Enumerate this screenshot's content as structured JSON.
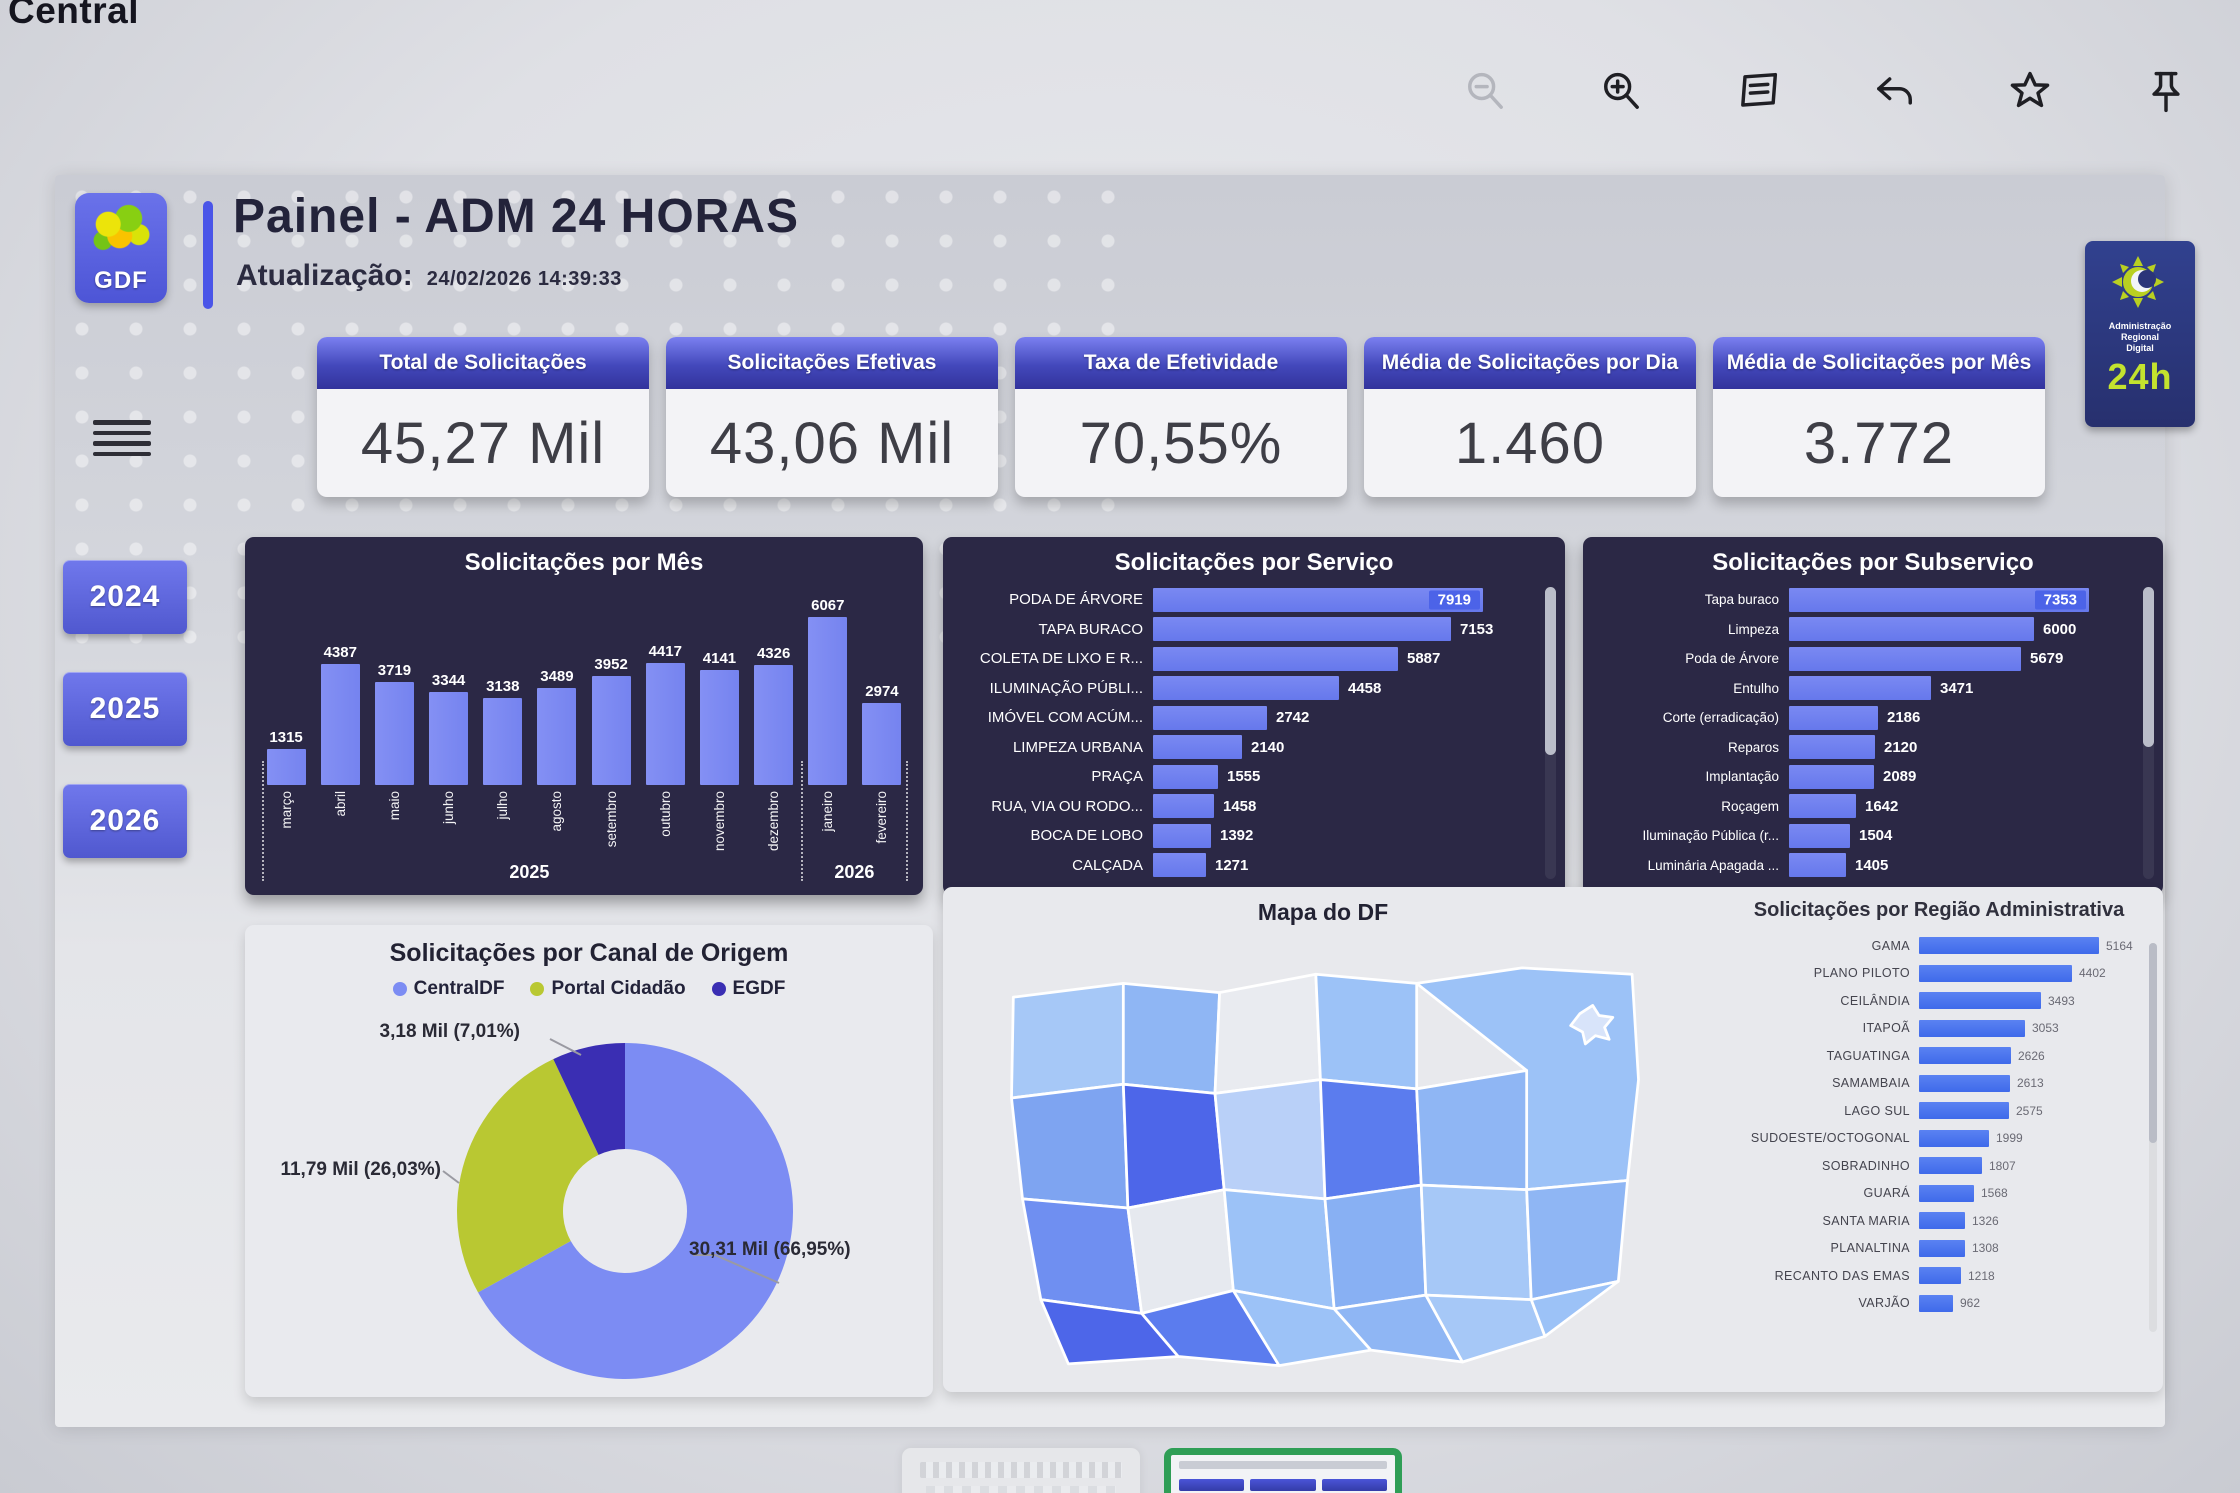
{
  "window": {
    "label": "Central"
  },
  "toolbar": {
    "icons": [
      "zoom-out-icon",
      "zoom-in-icon",
      "comment-icon",
      "undo-icon",
      "star-icon",
      "pin-icon",
      "smiley-icon"
    ]
  },
  "sidebar": {
    "logo_text": "GDF",
    "years": [
      "2024",
      "2025",
      "2026"
    ]
  },
  "header": {
    "title": "Painel - ADM 24 HORAS",
    "update_label": "Atualização:",
    "update_value": "24/02/2026 14:39:33",
    "logo_right": {
      "line1": "Administração",
      "line2": "Regional",
      "line3": "Digital",
      "badge": "24h"
    }
  },
  "kpis": [
    {
      "label": "Total de Solicitações",
      "value": "45,27 Mil"
    },
    {
      "label": "Solicitações Efetivas",
      "value": "43,06 Mil"
    },
    {
      "label": "Taxa de Efetividade",
      "value": "70,55%"
    },
    {
      "label": "Média de Solicitações por Dia",
      "value": "1.460"
    },
    {
      "label": "Média de Solicitações por Mês",
      "value": "3.772"
    }
  ],
  "chart_data": [
    {
      "type": "bar",
      "title": "Solicitações por Mês",
      "categories": [
        "março",
        "abril",
        "maio",
        "junho",
        "julho",
        "agosto",
        "setembro",
        "outubro",
        "novembro",
        "dezembro",
        "janeiro",
        "fevereiro"
      ],
      "values": [
        1315,
        4387,
        3719,
        3344,
        3138,
        3489,
        3952,
        4417,
        4141,
        4326,
        6067,
        2974
      ],
      "group_labels": [
        {
          "label": "2025",
          "months": 10
        },
        {
          "label": "2026",
          "months": 2
        }
      ],
      "ylim": [
        0,
        6500
      ],
      "bar_color": "#7d8bf2"
    },
    {
      "type": "bar",
      "orientation": "horizontal",
      "title": "Solicitações por Serviço",
      "categories": [
        "PODA DE ÁRVORE",
        "TAPA BURACO",
        "COLETA DE LIXO E R...",
        "ILUMINAÇÃO PÚBLI...",
        "IMÓVEL COM ACÚM...",
        "LIMPEZA URBANA",
        "PRAÇA",
        "RUA, VIA OU RODO...",
        "BOCA DE LOBO",
        "CALÇADA"
      ],
      "values": [
        7919,
        7153,
        5887,
        4458,
        2742,
        2140,
        1555,
        1458,
        1392,
        1271
      ],
      "first_value_inside": true,
      "bar_color": "#6d80ee"
    },
    {
      "type": "bar",
      "orientation": "horizontal",
      "title": "Solicitações por Subserviço",
      "categories": [
        "Tapa buraco",
        "Limpeza",
        "Poda de Árvore",
        "Entulho",
        "Corte (erradicação)",
        "Reparos",
        "Implantação",
        "Roçagem",
        "Iluminação Pública (r...",
        "Luminária Apagada ..."
      ],
      "values": [
        7353,
        6000,
        5679,
        3471,
        2186,
        2120,
        2089,
        1642,
        1504,
        1405
      ],
      "first_value_inside": true,
      "bar_color": "#6d80ee"
    },
    {
      "type": "pie",
      "title": "Solicitações por Canal de Origem",
      "legend": [
        "CentralDF",
        "Portal Cidadão",
        "EGDF"
      ],
      "slices": [
        {
          "name": "CentralDF",
          "label": "30,31 Mil (66,95%)",
          "pct": 66.95,
          "color": "#7c8cf3"
        },
        {
          "name": "Portal Cidadão",
          "label": "11,79 Mil (26,03%)",
          "pct": 26.03,
          "color": "#b9c832"
        },
        {
          "name": "EGDF",
          "label": "3,18 Mil (7,01%)",
          "pct": 7.01,
          "color": "#3a2eb3"
        }
      ],
      "donut_hole": true
    },
    {
      "type": "bar",
      "orientation": "horizontal",
      "title": "Solicitações por Região Administrativa",
      "categories": [
        "GAMA",
        "PLANO PILOTO",
        "CEILÂNDIA",
        "ITAPOÃ",
        "TAGUATINGA",
        "SAMAMBAIA",
        "LAGO SUL",
        "SUDOESTE/OCTOGONAL",
        "SOBRADINHO",
        "GUARÁ",
        "SANTA MARIA",
        "PLANALTINA",
        "RECANTO DAS EMAS",
        "VARJÃO"
      ],
      "values": [
        5164,
        4402,
        3493,
        3053,
        2626,
        2613,
        2575,
        1999,
        1807,
        1568,
        1326,
        1308,
        1218,
        962
      ],
      "bar_color": "#4a73ee"
    },
    {
      "type": "map",
      "title": "Mapa do DF",
      "palette": [
        "#a6c8f7",
        "#8fb6f4",
        "#e9ebf0",
        "#9cc2f7",
        "#88b0f3",
        "#7ea4f1",
        "#4d66e9",
        "#b9d0f8",
        "#5b7cee",
        "#e6e9ef",
        "#6f8ff1",
        "#d8e4fa"
      ]
    }
  ]
}
